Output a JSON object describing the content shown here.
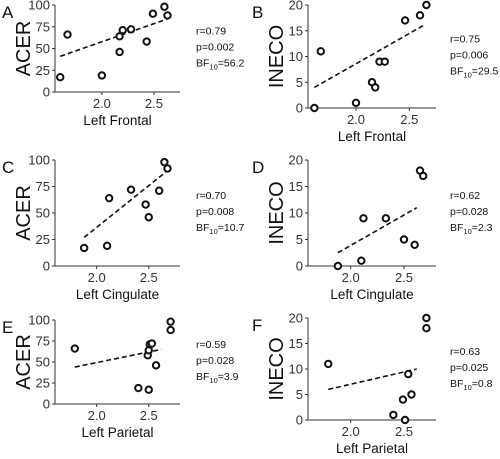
{
  "chart_data": [
    {
      "id": "A",
      "type": "scatter",
      "letter": "A",
      "ylabel": "ACER",
      "xlabel": "Left Frontal",
      "xlim": [
        1.55,
        2.75
      ],
      "ylim": [
        0,
        100
      ],
      "xticks": [
        2.0,
        2.5
      ],
      "xtick_labels": [
        "2.0",
        "2.5"
      ],
      "yticks": [
        0,
        25,
        50,
        75,
        100
      ],
      "ytick_labels": [
        "0",
        "25",
        "50",
        "75",
        "100"
      ],
      "points": [
        [
          1.6,
          17
        ],
        [
          1.67,
          66
        ],
        [
          2.0,
          19
        ],
        [
          2.17,
          46
        ],
        [
          2.17,
          64
        ],
        [
          2.2,
          71
        ],
        [
          2.28,
          72
        ],
        [
          2.43,
          58
        ],
        [
          2.49,
          90
        ],
        [
          2.6,
          98
        ],
        [
          2.63,
          88
        ]
      ],
      "fit": [
        [
          1.6,
          41
        ],
        [
          2.63,
          84
        ]
      ],
      "stats": {
        "r": "r=0.79",
        "p": "p=0.002",
        "bf_prefix": "BF",
        "bf_sub": "10",
        "bf_value": "=56.2"
      }
    },
    {
      "id": "B",
      "type": "scatter",
      "letter": "B",
      "ylabel": "INECO",
      "xlabel": "Left Frontal",
      "xlim": [
        1.55,
        2.75
      ],
      "ylim": [
        0,
        20
      ],
      "xticks": [
        2.0,
        2.5
      ],
      "xtick_labels": [
        "2.0",
        "2.5"
      ],
      "yticks": [
        0,
        5,
        10,
        15,
        20
      ],
      "ytick_labels": [
        "0",
        "5",
        "10",
        "15",
        "20"
      ],
      "points": [
        [
          1.61,
          0
        ],
        [
          1.67,
          11
        ],
        [
          2.0,
          1
        ],
        [
          2.15,
          5
        ],
        [
          2.18,
          4
        ],
        [
          2.22,
          9
        ],
        [
          2.27,
          9
        ],
        [
          2.46,
          17
        ],
        [
          2.6,
          18
        ],
        [
          2.66,
          20
        ]
      ],
      "fit": [
        [
          1.61,
          4
        ],
        [
          2.63,
          16
        ]
      ],
      "stats": {
        "r": "r=0.75",
        "p": "p=0.006",
        "bf_prefix": "BF",
        "bf_sub": "10",
        "bf_value": "=29.5"
      }
    },
    {
      "id": "C",
      "type": "scatter",
      "letter": "C",
      "ylabel": "ACER",
      "xlabel": "Left Cingulate",
      "xlim": [
        1.6,
        2.8
      ],
      "ylim": [
        0,
        100
      ],
      "xticks": [
        2.0,
        2.5
      ],
      "xtick_labels": [
        "2.0",
        "2.5"
      ],
      "yticks": [
        0,
        25,
        50,
        75,
        100
      ],
      "ytick_labels": [
        "0",
        "25",
        "50",
        "75",
        "100"
      ],
      "points": [
        [
          1.88,
          17
        ],
        [
          2.1,
          19
        ],
        [
          2.12,
          64
        ],
        [
          2.33,
          72
        ],
        [
          2.47,
          58
        ],
        [
          2.5,
          46
        ],
        [
          2.6,
          71
        ],
        [
          2.65,
          98
        ],
        [
          2.68,
          92
        ]
      ],
      "fit": [
        [
          1.88,
          27
        ],
        [
          2.68,
          90
        ]
      ],
      "stats": {
        "r": "r=0.70",
        "p": "p=0.008",
        "bf_prefix": "BF",
        "bf_sub": "10",
        "bf_value": "=10.7"
      }
    },
    {
      "id": "D",
      "type": "scatter",
      "letter": "D",
      "ylabel": "INECO",
      "xlabel": "Left Cingulate",
      "xlim": [
        1.6,
        2.8
      ],
      "ylim": [
        0,
        20
      ],
      "xticks": [
        2.0,
        2.5
      ],
      "xtick_labels": [
        "2.0",
        "2.5"
      ],
      "yticks": [
        0,
        5,
        10,
        15,
        20
      ],
      "ytick_labels": [
        "0",
        "5",
        "10",
        "15",
        "20"
      ],
      "points": [
        [
          1.88,
          0
        ],
        [
          2.1,
          1
        ],
        [
          2.12,
          9
        ],
        [
          2.33,
          9
        ],
        [
          2.5,
          5
        ],
        [
          2.6,
          4
        ],
        [
          2.65,
          18
        ],
        [
          2.68,
          17
        ]
      ],
      "fit": [
        [
          1.88,
          2.5
        ],
        [
          2.62,
          11
        ]
      ],
      "stats": {
        "r": "r=0.62",
        "p": "p=0.028",
        "bf_prefix": "BF",
        "bf_sub": "10",
        "bf_value": "=2.3"
      }
    },
    {
      "id": "E",
      "type": "scatter",
      "letter": "E",
      "ylabel": "ACER",
      "xlabel": "Left Parietal",
      "xlim": [
        1.6,
        2.8
      ],
      "ylim": [
        0,
        100
      ],
      "xticks": [
        2.0,
        2.5
      ],
      "xtick_labels": [
        "2.0",
        "2.5"
      ],
      "yticks": [
        0,
        25,
        50,
        75,
        100
      ],
      "ytick_labels": [
        "0",
        "25",
        "50",
        "75",
        "100"
      ],
      "points": [
        [
          1.79,
          66
        ],
        [
          2.4,
          19
        ],
        [
          2.49,
          58
        ],
        [
          2.5,
          64
        ],
        [
          2.51,
          71
        ],
        [
          2.53,
          72
        ],
        [
          2.5,
          17
        ],
        [
          2.57,
          46
        ],
        [
          2.71,
          98
        ],
        [
          2.71,
          88
        ]
      ],
      "fit": [
        [
          1.79,
          44
        ],
        [
          2.62,
          65
        ]
      ],
      "stats": {
        "r": "r=0.59",
        "p": "p=0.028",
        "bf_prefix": "BF",
        "bf_sub": "10",
        "bf_value": "=3.9"
      }
    },
    {
      "id": "F",
      "type": "scatter",
      "letter": "F",
      "ylabel": "INECO",
      "xlabel": "Left Parietal",
      "xlim": [
        1.6,
        2.8
      ],
      "ylim": [
        0,
        20
      ],
      "xticks": [
        2.0,
        2.5
      ],
      "xtick_labels": [
        "2.0",
        "2.5"
      ],
      "yticks": [
        0,
        5,
        10,
        15,
        20
      ],
      "ytick_labels": [
        "0",
        "5",
        "10",
        "15",
        "20"
      ],
      "points": [
        [
          1.79,
          11
        ],
        [
          2.4,
          1
        ],
        [
          2.49,
          4
        ],
        [
          2.51,
          0
        ],
        [
          2.54,
          9
        ],
        [
          2.57,
          5
        ],
        [
          2.71,
          20
        ],
        [
          2.71,
          18
        ]
      ],
      "fit": [
        [
          1.79,
          6
        ],
        [
          2.62,
          10
        ]
      ],
      "stats": {
        "r": "r=0.63",
        "p": "p=0.025",
        "bf_prefix": "BF",
        "bf_sub": "10",
        "bf_value": "=0.8"
      }
    }
  ]
}
